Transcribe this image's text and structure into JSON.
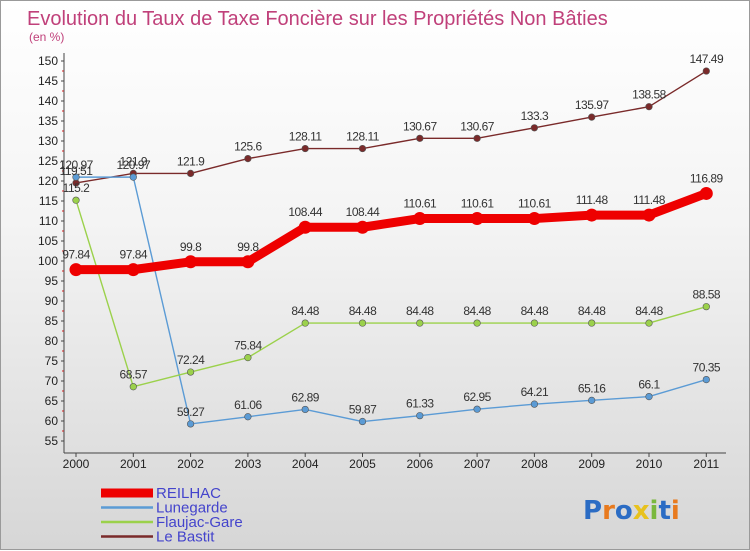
{
  "chart_data": {
    "type": "line",
    "title": "Evolution du Taux de Taxe Foncière sur les Propriétés Non Bâties",
    "subtitle": "(en %)",
    "categories": [
      "2000",
      "2001",
      "2002",
      "2003",
      "2004",
      "2005",
      "2006",
      "2007",
      "2008",
      "2009",
      "2010",
      "2011"
    ],
    "ylim": [
      55,
      150
    ],
    "yticks": [
      55,
      60,
      65,
      70,
      75,
      80,
      85,
      90,
      95,
      100,
      105,
      110,
      115,
      120,
      125,
      130,
      135,
      140,
      145,
      150
    ],
    "grid": false,
    "legend_position": "bottom-left",
    "series": [
      {
        "name": "REILHAC",
        "color": "#ee0000",
        "values": [
          97.84,
          97.84,
          99.8,
          99.8,
          108.44,
          108.44,
          110.61,
          110.61,
          110.61,
          111.48,
          111.48,
          116.89
        ],
        "labels": [
          "97.84",
          "97.84",
          "99.8",
          "99.8",
          "108.44",
          "108.44",
          "110.61",
          "110.61",
          "110.61",
          "111.48",
          "111.48",
          "116.89"
        ]
      },
      {
        "name": "Lunegarde",
        "color": "#5b9bd5",
        "values": [
          120.97,
          120.97,
          59.27,
          61.06,
          62.89,
          59.87,
          61.33,
          62.95,
          64.21,
          65.16,
          66.1,
          70.35
        ],
        "labels": [
          "120.97",
          "120.97",
          "59.27",
          "61.06",
          "62.89",
          "59.87",
          "61.33",
          "62.95",
          "64.21",
          "65.16",
          "66.1",
          "70.35"
        ]
      },
      {
        "name": "Flaujac-Gare",
        "color": "#9bd14b",
        "values": [
          115.2,
          68.57,
          72.24,
          75.84,
          84.48,
          84.48,
          84.48,
          84.48,
          84.48,
          84.48,
          84.48,
          88.58
        ],
        "labels": [
          "115.2",
          "68.57",
          "72.24",
          "75.84",
          "84.48",
          "84.48",
          "84.48",
          "84.48",
          "84.48",
          "84.48",
          "84.48",
          "88.58"
        ]
      },
      {
        "name": "Le Bastit",
        "color": "#7a2a2a",
        "values": [
          119.51,
          121.9,
          121.9,
          125.6,
          128.11,
          128.11,
          130.67,
          130.67,
          133.3,
          135.97,
          138.58,
          147.49
        ],
        "labels": [
          "119.51",
          "121.9",
          "121.9",
          "125.6",
          "128.11",
          "128.11",
          "130.67",
          "130.67",
          "133.3",
          "135.97",
          "138.58",
          "147.49"
        ]
      }
    ]
  },
  "logo": {
    "text": "Proxiti",
    "letter_colors": [
      "#2b6cc4",
      "#e87a1e",
      "#2b6cc4",
      "#e8c21e",
      "#7ab83e",
      "#2b6cc4",
      "#e87a1e"
    ]
  }
}
